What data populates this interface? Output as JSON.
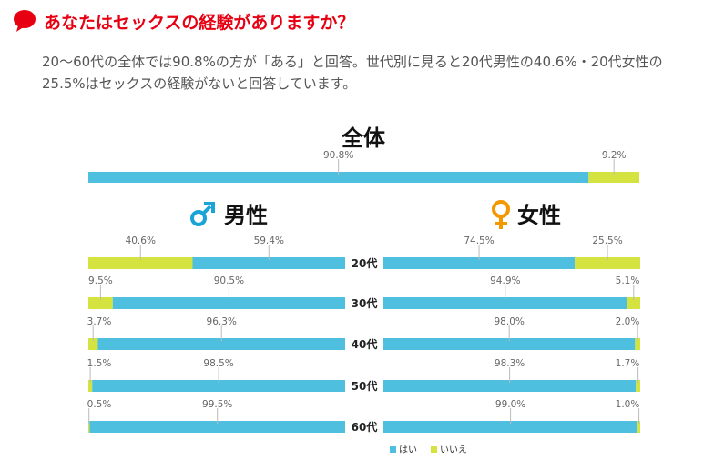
{
  "header": {
    "title": "あなたはセックスの経験がありますか？",
    "description": "20〜60代の全体では90.8%の方が「ある」と回答。世代別に見ると20代男性の40.6%・20代女性の25.5%はセックスの経験がないと回答しています。"
  },
  "colors": {
    "yes": "#4fbfe0",
    "no": "#d5e341",
    "accent": "#e60012",
    "male": "#1aa3d6",
    "female": "#f39800"
  },
  "chart_data": {
    "type": "bar",
    "orientation": "horizontal-stacked-100",
    "series_names": [
      "はい",
      "いいえ"
    ],
    "overall": {
      "title": "全体",
      "yes": 90.8,
      "no": 9.2,
      "yes_label": "90.8%",
      "no_label": "9.2%"
    },
    "male": {
      "title": "男性",
      "categories": [
        "20代",
        "30代",
        "40代",
        "50代",
        "60代"
      ],
      "yes": [
        59.4,
        90.5,
        96.3,
        98.5,
        99.5
      ],
      "no": [
        40.6,
        9.5,
        3.7,
        1.5,
        0.5
      ],
      "yes_labels": [
        "59.4%",
        "90.5%",
        "96.3%",
        "98.5%",
        "99.5%"
      ],
      "no_labels": [
        "40.6%",
        "9.5%",
        "3.7%",
        "1.5%",
        "0.5%"
      ]
    },
    "female": {
      "title": "女性",
      "categories": [
        "20代",
        "30代",
        "40代",
        "50代",
        "60代"
      ],
      "yes": [
        74.5,
        94.9,
        98.0,
        98.3,
        99.0
      ],
      "no": [
        25.5,
        5.1,
        2.0,
        1.7,
        1.0
      ],
      "yes_labels": [
        "74.5%",
        "94.9%",
        "98.0%",
        "98.3%",
        "99.0%"
      ],
      "no_labels": [
        "25.5%",
        "5.1%",
        "2.0%",
        "1.7%",
        "1.0%"
      ]
    },
    "legend": [
      "はい",
      "いいえ"
    ]
  }
}
